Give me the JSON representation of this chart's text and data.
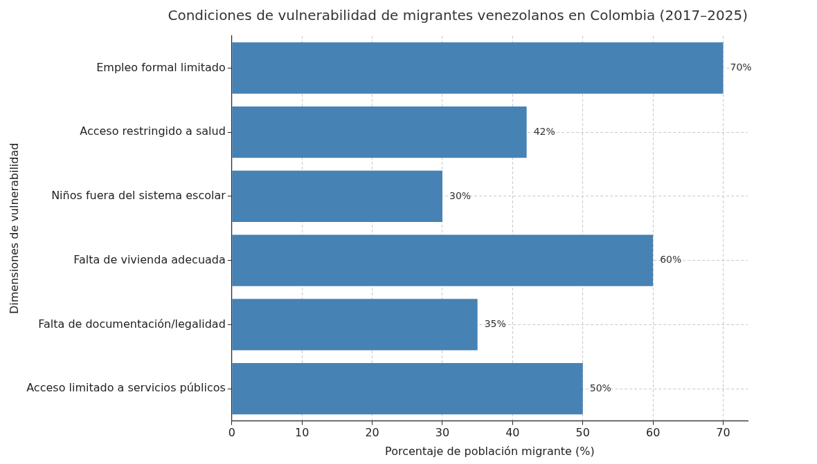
{
  "chart_data": {
    "type": "bar",
    "orientation": "horizontal",
    "title": "Condiciones de vulnerabilidad de migrantes venezolanos en Colombia (2017–2025)",
    "xlabel": "Porcentaje de población migrante (%)",
    "ylabel": "Dimensiones de vulnerabilidad",
    "categories": [
      "Empleo formal limitado",
      "Acceso restringido a salud",
      "Niños fuera del sistema escolar",
      "Falta de vivienda adecuada",
      "Falta de documentación/legalidad",
      "Acceso limitado a servicios públicos"
    ],
    "values": [
      70,
      42,
      30,
      60,
      35,
      50
    ],
    "value_labels": [
      "70%",
      "42%",
      "30%",
      "60%",
      "35%",
      "50%"
    ],
    "color": "#4682b4",
    "xlim": [
      0,
      73.5
    ],
    "xticks": [
      0,
      10,
      20,
      30,
      40,
      50,
      60,
      70
    ],
    "grid": true,
    "legend": false
  }
}
